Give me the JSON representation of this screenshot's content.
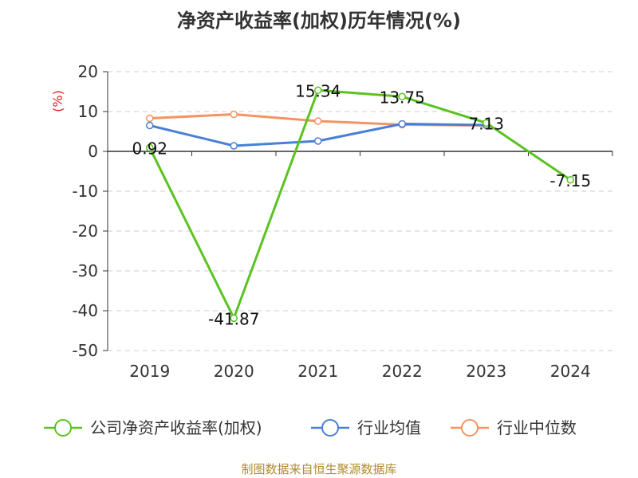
{
  "chart_data": {
    "type": "line",
    "title": "净资产收益率(加权)历年情况(%)",
    "ylabel": "(%)",
    "xlabel": "",
    "categories": [
      "2019",
      "2020",
      "2021",
      "2022",
      "2023",
      "2024"
    ],
    "ylim": [
      -50,
      20
    ],
    "yticks": [
      20,
      10,
      0,
      -10,
      -20,
      -30,
      -40,
      -50
    ],
    "grid": "horizontal dashed",
    "legend_position": "bottom",
    "series": [
      {
        "name": "公司净资产收益率(加权)",
        "color": "#5ac321",
        "values": [
          0.92,
          -41.87,
          15.34,
          13.75,
          7.13,
          -7.15
        ],
        "labels": [
          "0.92",
          "-41.87",
          "15.34",
          "13.75",
          "7.13",
          "-7.15"
        ]
      },
      {
        "name": "行业均值",
        "color": "#4a7fd6",
        "values": [
          6.5,
          1.4,
          2.6,
          6.9,
          6.6,
          null
        ]
      },
      {
        "name": "行业中位数",
        "color": "#f39462",
        "values": [
          8.3,
          9.3,
          7.6,
          6.7,
          6.5,
          null
        ]
      }
    ]
  },
  "source_note": "制图数据来自恒生聚源数据库"
}
